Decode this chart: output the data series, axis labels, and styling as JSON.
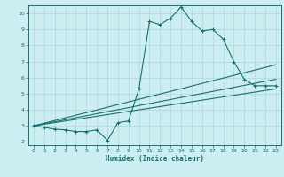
{
  "xlabel": "Humidex (Indice chaleur)",
  "bg_color": "#cceef0",
  "grid_color": "#aad8dc",
  "line_color": "#1a7070",
  "xlim": [
    -0.5,
    23.5
  ],
  "ylim": [
    1.8,
    10.5
  ],
  "yticks": [
    2,
    3,
    4,
    5,
    6,
    7,
    8,
    9,
    10
  ],
  "xticks": [
    0,
    1,
    2,
    3,
    4,
    5,
    6,
    7,
    8,
    9,
    10,
    11,
    12,
    13,
    14,
    15,
    16,
    17,
    18,
    19,
    20,
    21,
    22,
    23
  ],
  "series1_x": [
    0,
    1,
    2,
    3,
    4,
    5,
    6,
    7,
    8,
    9,
    10,
    11,
    12,
    13,
    14,
    15,
    16,
    17,
    18,
    19,
    20,
    21,
    22,
    23
  ],
  "series1_y": [
    3.0,
    2.9,
    2.8,
    2.75,
    2.65,
    2.65,
    2.75,
    2.1,
    3.2,
    3.3,
    5.3,
    9.5,
    9.3,
    9.7,
    10.4,
    9.5,
    8.9,
    9.0,
    8.4,
    7.0,
    5.9,
    5.5,
    5.5,
    5.5
  ],
  "series2_x": [
    0,
    23
  ],
  "series2_y": [
    3.0,
    6.8
  ],
  "series3_x": [
    0,
    23
  ],
  "series3_y": [
    3.0,
    5.9
  ],
  "series4_x": [
    0,
    23
  ],
  "series4_y": [
    3.0,
    5.3
  ],
  "marker": "+",
  "markersize": 3.5,
  "linewidth": 0.8,
  "tick_fontsize": 4.5,
  "xlabel_fontsize": 5.5
}
